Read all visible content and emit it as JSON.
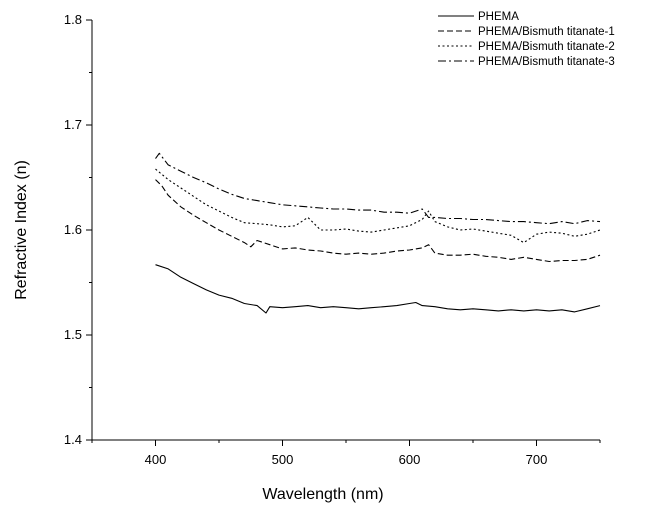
{
  "chart_data": {
    "type": "line",
    "xlabel": "Wavelength (nm)",
    "ylabel": "Refractive Index (n)",
    "xlim": [
      350,
      750
    ],
    "ylim": [
      1.4,
      1.8
    ],
    "xticks": [
      400,
      500,
      600,
      700
    ],
    "xtick_labels": [
      "400",
      "500",
      "600",
      "700"
    ],
    "yticks": [
      1.4,
      1.5,
      1.6,
      1.7,
      1.8
    ],
    "ytick_labels": [
      "1.4",
      "1.5",
      "1.6",
      "1.7",
      "1.8"
    ],
    "grid": false,
    "legend_position": "top-right",
    "series": [
      {
        "name": "PHEMA",
        "dash": "solid",
        "x": [
          400,
          410,
          420,
          430,
          440,
          450,
          460,
          470,
          480,
          487,
          490,
          500,
          510,
          520,
          530,
          540,
          550,
          560,
          570,
          580,
          590,
          600,
          605,
          610,
          620,
          630,
          640,
          650,
          660,
          670,
          680,
          690,
          700,
          710,
          720,
          730,
          740,
          750
        ],
        "values": [
          1.567,
          1.563,
          1.555,
          1.549,
          1.543,
          1.538,
          1.535,
          1.53,
          1.528,
          1.521,
          1.527,
          1.526,
          1.527,
          1.528,
          1.526,
          1.527,
          1.526,
          1.525,
          1.526,
          1.527,
          1.528,
          1.53,
          1.531,
          1.528,
          1.527,
          1.525,
          1.524,
          1.525,
          1.524,
          1.523,
          1.524,
          1.523,
          1.524,
          1.523,
          1.524,
          1.522,
          1.525,
          1.528
        ]
      },
      {
        "name": "PHEMA/Bismuth titanate-1",
        "dash": "dashed",
        "x": [
          400,
          405,
          410,
          420,
          430,
          440,
          450,
          460,
          470,
          475,
          480,
          490,
          500,
          510,
          520,
          530,
          540,
          550,
          560,
          570,
          580,
          590,
          600,
          610,
          615,
          620,
          630,
          640,
          650,
          660,
          670,
          680,
          690,
          700,
          710,
          720,
          730,
          740,
          750
        ],
        "values": [
          1.648,
          1.642,
          1.633,
          1.622,
          1.614,
          1.607,
          1.6,
          1.594,
          1.588,
          1.584,
          1.59,
          1.586,
          1.582,
          1.583,
          1.581,
          1.58,
          1.578,
          1.577,
          1.578,
          1.577,
          1.578,
          1.58,
          1.581,
          1.583,
          1.586,
          1.578,
          1.576,
          1.576,
          1.577,
          1.575,
          1.574,
          1.572,
          1.574,
          1.572,
          1.57,
          1.571,
          1.571,
          1.572,
          1.576
        ]
      },
      {
        "name": "PHEMA/Bismuth titanate-2",
        "dash": "dotted",
        "x": [
          400,
          410,
          420,
          430,
          440,
          450,
          460,
          470,
          480,
          490,
          500,
          510,
          520,
          530,
          540,
          550,
          560,
          570,
          580,
          590,
          600,
          610,
          615,
          620,
          630,
          640,
          650,
          660,
          670,
          680,
          690,
          700,
          710,
          720,
          730,
          740,
          750
        ],
        "values": [
          1.658,
          1.648,
          1.64,
          1.632,
          1.624,
          1.618,
          1.612,
          1.607,
          1.606,
          1.605,
          1.603,
          1.604,
          1.612,
          1.6,
          1.6,
          1.601,
          1.599,
          1.598,
          1.6,
          1.602,
          1.604,
          1.61,
          1.618,
          1.608,
          1.603,
          1.6,
          1.601,
          1.599,
          1.597,
          1.595,
          1.588,
          1.596,
          1.598,
          1.597,
          1.594,
          1.596,
          1.6
        ]
      },
      {
        "name": "PHEMA/Bismuth titanate-3",
        "dash": "dashdot",
        "x": [
          400,
          403,
          410,
          420,
          430,
          440,
          450,
          460,
          470,
          480,
          490,
          500,
          510,
          520,
          530,
          540,
          550,
          560,
          570,
          580,
          590,
          600,
          610,
          615,
          620,
          630,
          640,
          650,
          660,
          670,
          680,
          690,
          700,
          710,
          720,
          730,
          740,
          750
        ],
        "values": [
          1.668,
          1.673,
          1.662,
          1.656,
          1.65,
          1.645,
          1.639,
          1.634,
          1.63,
          1.628,
          1.626,
          1.624,
          1.623,
          1.622,
          1.621,
          1.62,
          1.62,
          1.619,
          1.619,
          1.617,
          1.617,
          1.616,
          1.62,
          1.612,
          1.612,
          1.611,
          1.611,
          1.61,
          1.61,
          1.609,
          1.608,
          1.608,
          1.607,
          1.606,
          1.608,
          1.606,
          1.609,
          1.608
        ]
      }
    ]
  }
}
